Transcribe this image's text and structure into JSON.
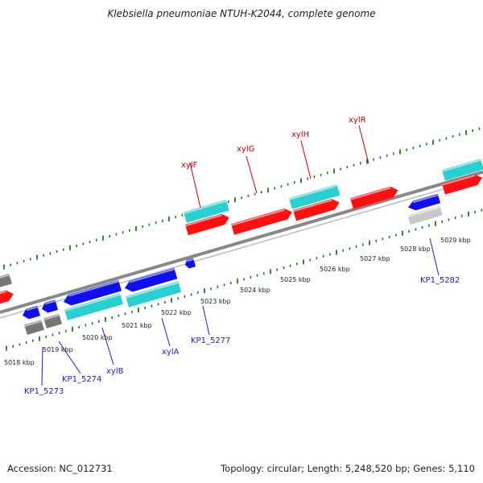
{
  "title": "Klebsiella pneumoniae NTUH-K2044, complete genome",
  "footer": {
    "accession": "Accession: NC_012731",
    "summary": "Topology: circular; Length: 5,248,520 bp; Genes: 5,110"
  },
  "colors": {
    "forward_feature": "#ff1010",
    "reverse_feature": "#1010ee",
    "forward_rna_like": "#2ad0d0",
    "reverse_rna_like": "#2ad0d0",
    "pseudo_gray": "#777777",
    "light_gray": "#c8c8c8",
    "backbone": "#888888",
    "ticks": "#1a7a1a",
    "red_label": "#cc0000",
    "blue_label": "#1a1ad6"
  },
  "kbp_labels": [
    {
      "text": "5018 kbp",
      "kbp": 5018
    },
    {
      "text": "5019 kbp",
      "kbp": 5019
    },
    {
      "text": "5020 kbp",
      "kbp": 5020
    },
    {
      "text": "5021 kbp",
      "kbp": 5021
    },
    {
      "text": "5022 kbp",
      "kbp": 5022
    },
    {
      "text": "5023 kbp",
      "kbp": 5023
    },
    {
      "text": "5024 kbp",
      "kbp": 5024
    },
    {
      "text": "5025 kbp",
      "kbp": 5025
    },
    {
      "text": "5026 kbp",
      "kbp": 5026
    },
    {
      "text": "5027 kbp",
      "kbp": 5027
    },
    {
      "text": "5028 kbp",
      "kbp": 5028
    },
    {
      "text": "5029 kbp",
      "kbp": 5029
    }
  ],
  "gene_labels": [
    {
      "text": "xylF",
      "strand": "forward"
    },
    {
      "text": "xylG",
      "strand": "forward"
    },
    {
      "text": "xylH",
      "strand": "forward"
    },
    {
      "text": "xylR",
      "strand": "forward"
    },
    {
      "text": "KP1_5282",
      "strand": "reverse"
    },
    {
      "text": "KP1_5277",
      "strand": "reverse"
    },
    {
      "text": "xylA",
      "strand": "reverse"
    },
    {
      "text": "xylB",
      "strand": "reverse"
    },
    {
      "text": "KP1_5274",
      "strand": "reverse"
    },
    {
      "text": "KP1_5273",
      "strand": "reverse"
    }
  ]
}
